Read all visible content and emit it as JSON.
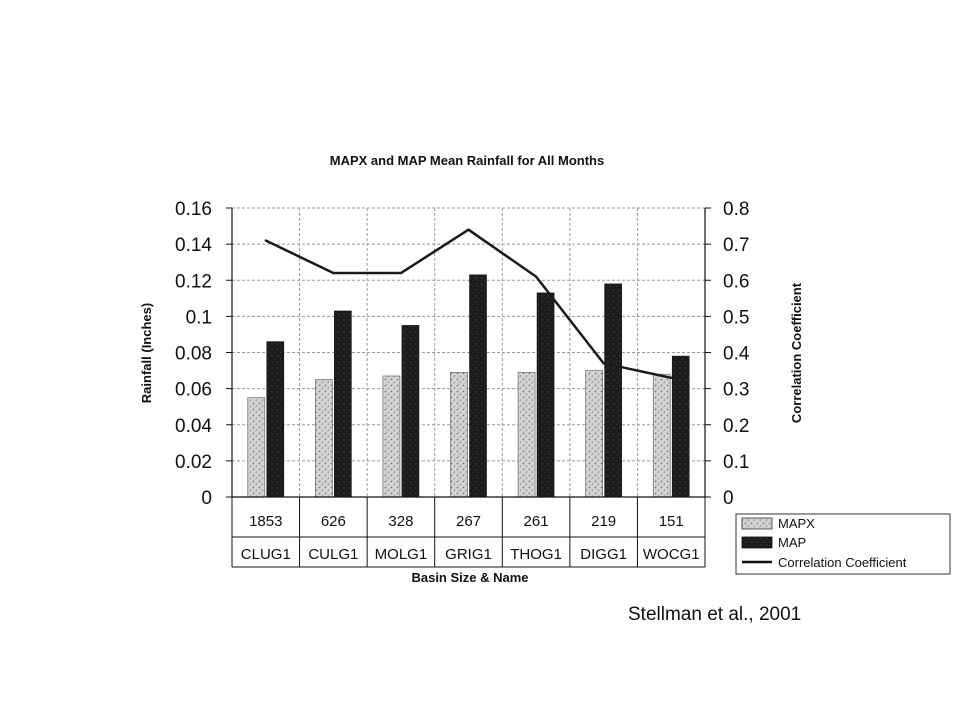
{
  "chart_data": {
    "type": "bar",
    "title": "MAPX and MAP Mean Rainfall for All Months",
    "xlabel": "Basin Size & Name",
    "ylabel": "Rainfall (Inches)",
    "y2label": "Correlation Coefficient",
    "ylim": [
      0,
      0.16
    ],
    "y2lim": [
      0,
      0.8
    ],
    "yticks": [
      "0",
      "0.02",
      "0.04",
      "0.06",
      "0.08",
      "0.1",
      "0.12",
      "0.14",
      "0.16"
    ],
    "y2ticks": [
      "0",
      "0.1",
      "0.2",
      "0.3",
      "0.4",
      "0.5",
      "0.6",
      "0.7",
      "0.8"
    ],
    "categories": [
      "CLUG1",
      "CULG1",
      "MOLG1",
      "GRIG1",
      "THOG1",
      "DIGG1",
      "WOCG1"
    ],
    "basin_sizes": [
      "1853",
      "626",
      "328",
      "267",
      "261",
      "219",
      "151"
    ],
    "series": [
      {
        "name": "MAPX",
        "type": "bar",
        "axis": "left",
        "values": [
          0.055,
          0.065,
          0.067,
          0.069,
          0.069,
          0.07,
          0.068
        ]
      },
      {
        "name": "MAP",
        "type": "bar",
        "axis": "left",
        "values": [
          0.086,
          0.103,
          0.095,
          0.123,
          0.113,
          0.118,
          0.078
        ]
      },
      {
        "name": "Correlation Coefficient",
        "type": "line",
        "axis": "right",
        "values": [
          0.71,
          0.62,
          0.62,
          0.74,
          0.61,
          0.37,
          0.33
        ]
      }
    ],
    "grid": true,
    "legend_position": "bottom-right",
    "colors": {
      "mapx": "#cfcfcf",
      "map": "#1a1a1a",
      "line": "#1a1a1a",
      "grid": "#9a9a9a"
    }
  },
  "citation": "Stellman et al., 2001"
}
